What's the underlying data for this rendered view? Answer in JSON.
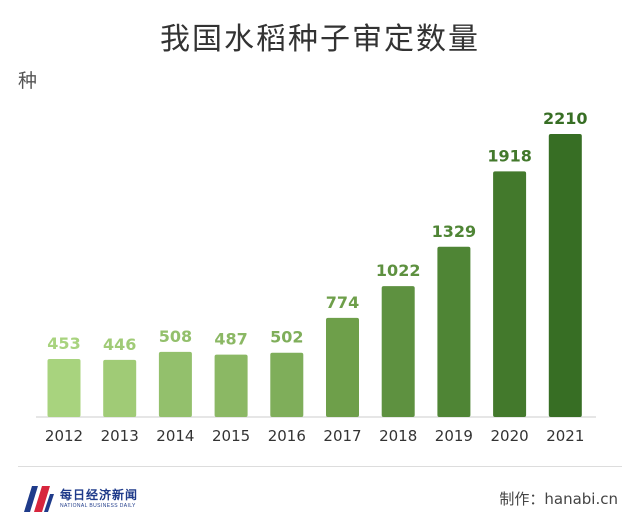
{
  "title": "我国水稻种子审定数量",
  "unit_label": "种",
  "footer": {
    "logo_cn": "每日经济新闻",
    "logo_en": "NATIONAL BUSINESS DAILY",
    "credit": "制作：hanabi.cn"
  },
  "colors": {
    "bars": [
      "#a8d37e",
      "#a0cb76",
      "#93c06c",
      "#8bb864",
      "#7fae5a",
      "#6e9f4a",
      "#5e9140",
      "#4f8535",
      "#43792c",
      "#376e24"
    ],
    "value_labels": [
      "#a8d37e",
      "#a0cb76",
      "#93c06c",
      "#8bb864",
      "#7fae5a",
      "#6e9f4a",
      "#5e9140",
      "#4f8535",
      "#43792c",
      "#376e24"
    ],
    "axis": "#cccccc"
  },
  "chart_data": {
    "type": "bar",
    "title": "我国水稻种子审定数量",
    "ylabel": "种",
    "xlabel": "",
    "categories": [
      "2012",
      "2013",
      "2014",
      "2015",
      "2016",
      "2017",
      "2018",
      "2019",
      "2020",
      "2021"
    ],
    "values": [
      453,
      446,
      508,
      487,
      502,
      774,
      1022,
      1329,
      1918,
      2210
    ],
    "ylim": [
      0,
      2210
    ],
    "grid": false,
    "legend": "none"
  }
}
